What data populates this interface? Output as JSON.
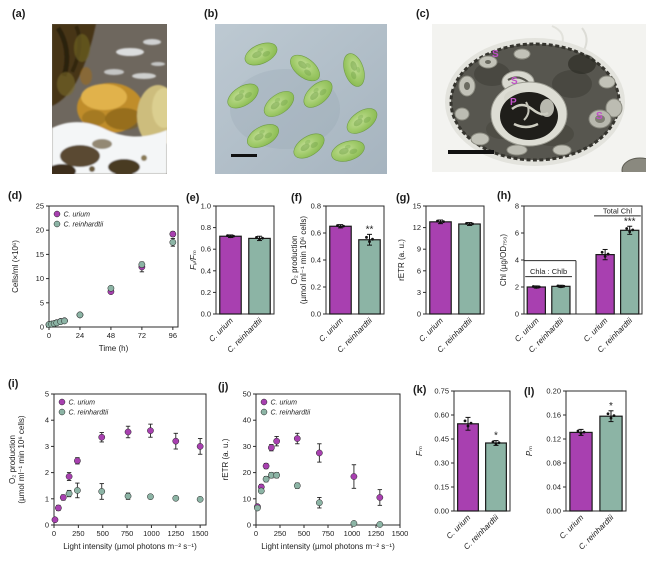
{
  "figure": {
    "panel_labels": {
      "a": "(a)",
      "b": "(b)",
      "c": "(c)",
      "d": "(d)",
      "e": "(e)",
      "f": "(f)",
      "g": "(g)",
      "h": "(h)",
      "i": "(i)",
      "j": "(j)",
      "k": "(k)",
      "l": "(l)"
    },
    "colors": {
      "c_urium": "#a840b0",
      "c_reinhardtii": "#8cb4a5",
      "axis": "#2b2b2b"
    },
    "species": {
      "urium": "C. urium",
      "reinhardtii": "C. reinhardtii"
    }
  },
  "panel_c": {
    "labels": [
      "S",
      "S",
      "P",
      "S"
    ]
  },
  "chart_data": [
    {
      "id": "d",
      "type": "scatter",
      "xlabel": "Time (h)",
      "ylabel": "Cells/ml (×10⁶)",
      "xlim": [
        0,
        100
      ],
      "ylim": [
        0,
        25
      ],
      "xticks": [
        "0",
        "24",
        "48",
        "72",
        "96"
      ],
      "yticks": [
        "0",
        "5",
        "10",
        "15",
        "20",
        "25"
      ],
      "legend": true,
      "legend_position": "top-left",
      "series": [
        {
          "name": "C. urium",
          "color": "#a840b0",
          "x": [
            0,
            2,
            4,
            6,
            9,
            12,
            24,
            48,
            72,
            96
          ],
          "y": [
            0.5,
            0.6,
            0.7,
            0.9,
            1.15,
            1.3,
            2.5,
            7.3,
            12.4,
            19.2
          ],
          "err": [
            0.08,
            0.08,
            0.08,
            0.1,
            0.12,
            0.12,
            0.18,
            0.3,
            1.0,
            0.5
          ]
        },
        {
          "name": "C. reinhardtii",
          "color": "#8cb4a5",
          "x": [
            0,
            2,
            4,
            6,
            9,
            12,
            24,
            48,
            72,
            96
          ],
          "y": [
            0.5,
            0.6,
            0.7,
            0.85,
            1.1,
            1.25,
            2.5,
            8.0,
            12.9,
            17.5
          ],
          "err": [
            0.08,
            0.08,
            0.08,
            0.1,
            0.1,
            0.1,
            0.18,
            0.35,
            0.5,
            0.8
          ]
        }
      ]
    },
    {
      "id": "e",
      "type": "bar",
      "ylabel": "Fᵥ/Fₘ",
      "ylabel_italic": true,
      "ylim": [
        0,
        1
      ],
      "yticks": [
        "0.0",
        "0.2",
        "0.4",
        "0.6",
        "0.8",
        "1.0"
      ],
      "categories": [
        "C. urium",
        "C. reinhardtii"
      ],
      "values": [
        0.72,
        0.7
      ],
      "errors": [
        0.012,
        0.02
      ],
      "colors": [
        "#a840b0",
        "#8cb4a5"
      ],
      "sig": [
        "",
        ""
      ]
    },
    {
      "id": "f",
      "type": "bar",
      "ylabel": "O₂ production\n(µmol ml⁻¹ min 10⁶ cells)",
      "ylim": [
        0,
        0.8
      ],
      "yticks": [
        "0.0",
        "0.2",
        "0.4",
        "0.6",
        "0.8"
      ],
      "categories": [
        "C. urium",
        "C. reinhardtii"
      ],
      "values": [
        0.65,
        0.55
      ],
      "errors": [
        0.012,
        0.04
      ],
      "colors": [
        "#a840b0",
        "#8cb4a5"
      ],
      "sig": [
        "",
        "**"
      ]
    },
    {
      "id": "g",
      "type": "bar",
      "ylabel": "rETR (a. u.)",
      "ylim": [
        0,
        15
      ],
      "yticks": [
        "0",
        "3",
        "6",
        "9",
        "12",
        "15"
      ],
      "categories": [
        "C. urium",
        "C. reinhardtii"
      ],
      "values": [
        12.8,
        12.5
      ],
      "errors": [
        0.25,
        0.2
      ],
      "colors": [
        "#a840b0",
        "#8cb4a5"
      ],
      "sig": [
        "",
        ""
      ]
    },
    {
      "id": "h",
      "type": "bar",
      "ylabel": "Chl (µg/OD₇₅₀)",
      "ylim": [
        0,
        8
      ],
      "yticks": [
        "0",
        "2",
        "4",
        "6",
        "8"
      ],
      "group_gap_after": 1,
      "categories": [
        "C. urium",
        "C. reinhardtii",
        "C. urium",
        "C. reinhardtii"
      ],
      "values": [
        2.0,
        2.05,
        4.4,
        6.2
      ],
      "errors": [
        0.08,
        0.08,
        0.38,
        0.3
      ],
      "colors": [
        "#a840b0",
        "#8cb4a5",
        "#a840b0",
        "#8cb4a5"
      ],
      "sig": [
        "",
        "",
        "",
        "***"
      ],
      "annotations": [
        {
          "kind": "label",
          "text": "Chla : Chlb",
          "bars": [
            0,
            1
          ],
          "y": 2.95
        },
        {
          "kind": "box",
          "bars": [
            0,
            1
          ],
          "y": 3.95
        },
        {
          "kind": "label",
          "text": "Total Chl",
          "bars": [
            2,
            3
          ],
          "y": 7.45
        }
      ]
    },
    {
      "id": "i",
      "type": "scatter",
      "xlabel": "Light intensity (µmol photons m⁻² s⁻¹)",
      "ylabel": "O₂ production\n(µmol ml⁻¹ min 10⁶ cells)",
      "xlim": [
        0,
        1560
      ],
      "ylim": [
        0,
        5
      ],
      "xticks": [
        "0",
        "250",
        "500",
        "750",
        "1000",
        "1250",
        "1500"
      ],
      "yticks": [
        "0",
        "1",
        "2",
        "3",
        "4",
        "5"
      ],
      "legend": true,
      "legend_position": "top-left",
      "series": [
        {
          "name": "C. urium",
          "color": "#a840b0",
          "x": [
            10,
            45,
            95,
            155,
            240,
            490,
            760,
            990,
            1250,
            1500
          ],
          "y": [
            0.2,
            0.65,
            1.05,
            1.85,
            2.45,
            3.35,
            3.55,
            3.6,
            3.2,
            3.0
          ],
          "err": [
            0.06,
            0.1,
            0.1,
            0.15,
            0.12,
            0.18,
            0.22,
            0.25,
            0.3,
            0.3
          ]
        },
        {
          "name": "C. reinhardtii",
          "color": "#8cb4a5",
          "x": [
            155,
            240,
            490,
            760,
            990,
            1250,
            1500
          ],
          "y": [
            1.2,
            1.32,
            1.28,
            1.1,
            1.08,
            1.02,
            0.98
          ],
          "err": [
            0.12,
            0.28,
            0.3,
            0.12,
            0.08,
            0.06,
            0.06
          ]
        }
      ]
    },
    {
      "id": "j",
      "type": "scatter",
      "xlabel": "Light intensity (µmol photons m⁻² s⁻¹)",
      "ylabel": "rETR (a. u.)",
      "xlim": [
        0,
        1500
      ],
      "ylim": [
        0,
        50
      ],
      "xticks": [
        "0",
        "250",
        "500",
        "750",
        "1000",
        "1250",
        "1500"
      ],
      "yticks": [
        "0",
        "10",
        "20",
        "30",
        "40",
        "50"
      ],
      "legend": true,
      "legend_position": "top-left",
      "series": [
        {
          "name": "C. urium",
          "color": "#a840b0",
          "x": [
            15,
            55,
            105,
            160,
            215,
            430,
            660,
            1020,
            1290
          ],
          "y": [
            7,
            14.5,
            22.5,
            29.5,
            32,
            33,
            27.5,
            18.5,
            10.5
          ],
          "err": [
            0.6,
            1,
            1,
            1.2,
            1.8,
            2,
            3.5,
            4.5,
            3
          ]
        },
        {
          "name": "C. reinhardtii",
          "color": "#8cb4a5",
          "x": [
            15,
            55,
            105,
            160,
            215,
            430,
            660,
            1020,
            1290
          ],
          "y": [
            6.5,
            13,
            17.5,
            19,
            19,
            15,
            8.5,
            0.6,
            0.2
          ],
          "err": [
            0.5,
            0.8,
            1,
            1,
            1,
            1,
            2,
            0.4,
            0.2
          ]
        }
      ]
    },
    {
      "id": "k",
      "type": "bar",
      "ylabel": "Fₘ",
      "ylabel_italic": true,
      "ylim": [
        0,
        0.75
      ],
      "yticks": [
        "0.00",
        "0.15",
        "0.30",
        "0.45",
        "0.60",
        "0.75"
      ],
      "categories": [
        "C. urium",
        "C. reinhardtii"
      ],
      "values": [
        0.545,
        0.425
      ],
      "errors": [
        0.04,
        0.015
      ],
      "colors": [
        "#a840b0",
        "#8cb4a5"
      ],
      "sig": [
        "",
        "*"
      ]
    },
    {
      "id": "l",
      "type": "bar",
      "ylabel": "Pₘ",
      "ylabel_italic": true,
      "ylim": [
        0,
        0.2
      ],
      "yticks": [
        "0.00",
        "0.04",
        "0.08",
        "0.12",
        "0.16",
        "0.20"
      ],
      "categories": [
        "C. urium",
        "C. reinhardtii"
      ],
      "values": [
        0.131,
        0.158
      ],
      "errors": [
        0.005,
        0.009
      ],
      "colors": [
        "#a840b0",
        "#8cb4a5"
      ],
      "sig": [
        "",
        "*"
      ]
    }
  ]
}
